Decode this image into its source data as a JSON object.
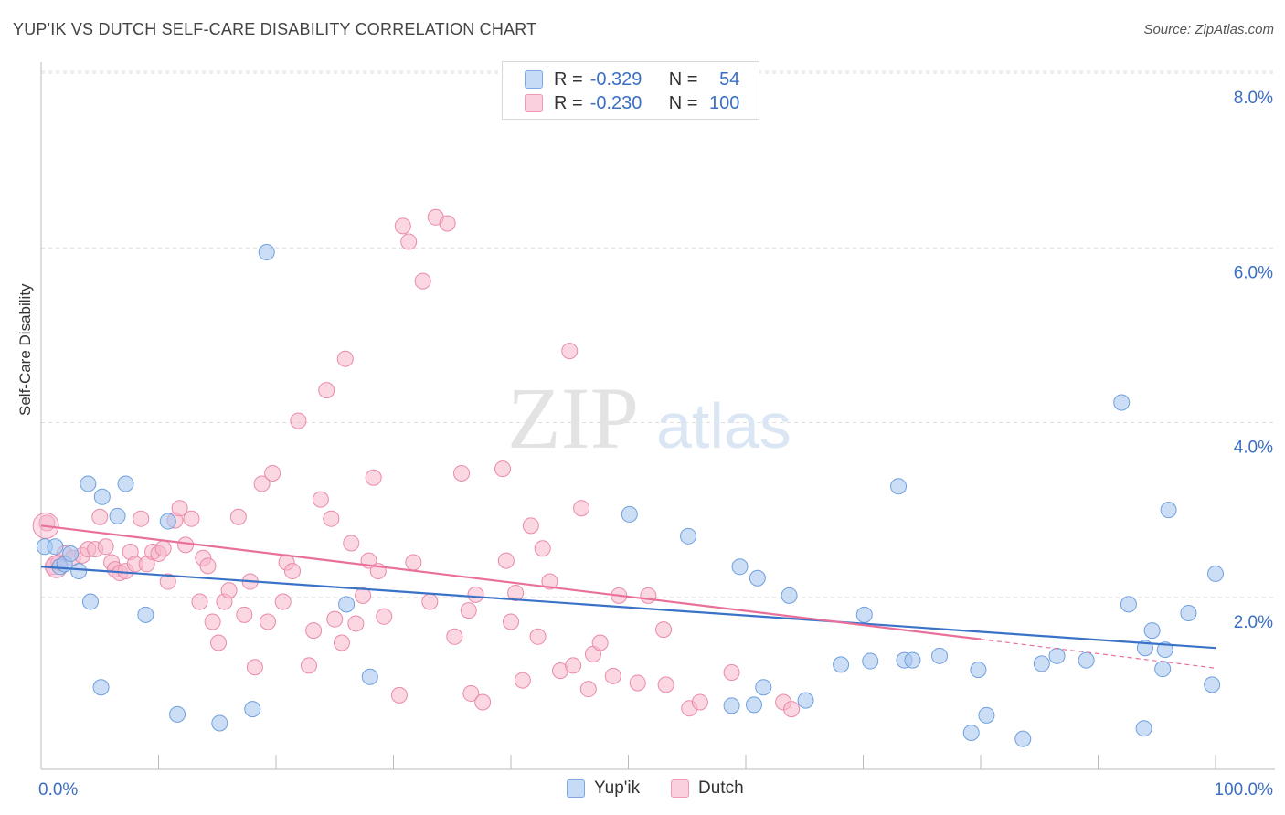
{
  "header": {
    "title": "YUP'IK VS DUTCH SELF-CARE DISABILITY CORRELATION CHART",
    "source": "Source: ZipAtlas.com"
  },
  "watermark": {
    "zip": "ZIP",
    "atlas": "atlas"
  },
  "legend": {
    "rows": [
      {
        "r_label": "R =",
        "r_value": "-0.329",
        "n_label": "N =",
        "n_value": "54",
        "color": "#a9c8f0"
      },
      {
        "r_label": "R =",
        "r_value": "-0.230",
        "n_label": "N =",
        "n_value": "100",
        "color": "#f7b6cb"
      }
    ]
  },
  "bottom_legend": {
    "yupik": "Yup'ik",
    "dutch": "Dutch"
  },
  "chart_data": {
    "type": "scatter",
    "title": "YUP'IK VS DUTCH SELF-CARE DISABILITY CORRELATION CHART",
    "xlabel": "",
    "ylabel": "Self-Care Disability",
    "xlim": [
      0,
      100
    ],
    "ylim": [
      0,
      8.2
    ],
    "x_tick_labels": [
      "0.0%",
      "100.0%"
    ],
    "y_ticks": [
      2,
      4,
      6,
      8
    ],
    "y_tick_labels": [
      "2.0%",
      "4.0%",
      "6.0%",
      "8.0%"
    ],
    "grid": "horizontal dashed",
    "legend_placement": "top-center",
    "series": [
      {
        "name": "Yup'ik",
        "color": "#a9c8f0",
        "edge_color": "#6f9fde",
        "trend": {
          "x": [
            0,
            100
          ],
          "y": [
            2.35,
            1.42
          ],
          "color": "#3a72c8"
        },
        "points": [
          [
            0.3,
            2.58
          ],
          [
            1.2,
            2.58
          ],
          [
            1.6,
            2.35
          ],
          [
            2.0,
            2.38
          ],
          [
            2.5,
            2.5
          ],
          [
            3.2,
            2.3
          ],
          [
            4.0,
            3.3
          ],
          [
            4.2,
            1.95
          ],
          [
            5.1,
            0.97
          ],
          [
            5.2,
            3.15
          ],
          [
            6.5,
            2.93
          ],
          [
            7.2,
            3.3
          ],
          [
            8.9,
            1.8
          ],
          [
            10.8,
            2.87
          ],
          [
            11.6,
            0.66
          ],
          [
            15.2,
            0.56
          ],
          [
            18.0,
            0.72
          ],
          [
            19.2,
            5.95
          ],
          [
            26.0,
            1.92
          ],
          [
            28.0,
            1.09
          ],
          [
            50.1,
            2.95
          ],
          [
            55.1,
            2.7
          ],
          [
            58.8,
            0.76
          ],
          [
            59.5,
            2.35
          ],
          [
            60.7,
            0.77
          ],
          [
            61.0,
            2.22
          ],
          [
            61.5,
            0.97
          ],
          [
            63.7,
            2.02
          ],
          [
            65.1,
            0.82
          ],
          [
            68.1,
            1.23
          ],
          [
            70.1,
            1.8
          ],
          [
            70.6,
            1.27
          ],
          [
            73.0,
            3.27
          ],
          [
            73.5,
            1.28
          ],
          [
            74.2,
            1.28
          ],
          [
            76.5,
            1.33
          ],
          [
            79.2,
            0.45
          ],
          [
            79.8,
            1.17
          ],
          [
            80.5,
            0.65
          ],
          [
            83.6,
            0.38
          ],
          [
            85.2,
            1.24
          ],
          [
            86.5,
            1.33
          ],
          [
            89.0,
            1.28
          ],
          [
            92.0,
            4.23
          ],
          [
            92.6,
            1.92
          ],
          [
            93.9,
            0.5
          ],
          [
            94.0,
            1.42
          ],
          [
            94.6,
            1.62
          ],
          [
            95.5,
            1.18
          ],
          [
            95.7,
            1.4
          ],
          [
            96.0,
            3.0
          ],
          [
            97.7,
            1.82
          ],
          [
            99.7,
            1.0
          ],
          [
            100.0,
            2.27
          ]
        ]
      },
      {
        "name": "Dutch",
        "color": "#f7b6cb",
        "edge_color": "#e98aa9",
        "trend": {
          "x": [
            0,
            80
          ],
          "y": [
            2.82,
            1.52
          ],
          "dashed_to": {
            "x": 100,
            "y": 1.19
          },
          "color": "#e8709b"
        },
        "points": [
          [
            0.5,
            2.85
          ],
          [
            1.0,
            2.35
          ],
          [
            1.5,
            2.4
          ],
          [
            2.0,
            2.5
          ],
          [
            2.7,
            2.45
          ],
          [
            3.5,
            2.48
          ],
          [
            4.0,
            2.55
          ],
          [
            4.6,
            2.55
          ],
          [
            5.0,
            2.92
          ],
          [
            5.5,
            2.58
          ],
          [
            6.0,
            2.4
          ],
          [
            6.3,
            2.32
          ],
          [
            6.7,
            2.28
          ],
          [
            7.2,
            2.3
          ],
          [
            7.6,
            2.52
          ],
          [
            8.0,
            2.38
          ],
          [
            8.5,
            2.9
          ],
          [
            9.0,
            2.38
          ],
          [
            9.5,
            2.52
          ],
          [
            10.0,
            2.5
          ],
          [
            10.4,
            2.56
          ],
          [
            10.8,
            2.18
          ],
          [
            11.4,
            2.88
          ],
          [
            11.8,
            3.02
          ],
          [
            12.3,
            2.6
          ],
          [
            12.8,
            2.9
          ],
          [
            13.5,
            1.95
          ],
          [
            13.8,
            2.45
          ],
          [
            14.2,
            2.36
          ],
          [
            14.6,
            1.72
          ],
          [
            15.1,
            1.48
          ],
          [
            15.6,
            1.95
          ],
          [
            16.0,
            2.08
          ],
          [
            16.8,
            2.92
          ],
          [
            17.3,
            1.8
          ],
          [
            17.8,
            2.18
          ],
          [
            18.2,
            1.2
          ],
          [
            18.8,
            3.3
          ],
          [
            19.3,
            1.72
          ],
          [
            19.7,
            3.42
          ],
          [
            20.6,
            1.95
          ],
          [
            20.9,
            2.4
          ],
          [
            21.4,
            2.3
          ],
          [
            21.9,
            4.02
          ],
          [
            22.8,
            1.22
          ],
          [
            23.2,
            1.62
          ],
          [
            23.8,
            3.12
          ],
          [
            24.3,
            4.37
          ],
          [
            24.7,
            2.9
          ],
          [
            25.0,
            1.75
          ],
          [
            25.6,
            1.48
          ],
          [
            25.9,
            4.73
          ],
          [
            26.4,
            2.62
          ],
          [
            26.8,
            1.7
          ],
          [
            27.4,
            2.02
          ],
          [
            27.9,
            2.42
          ],
          [
            28.3,
            3.37
          ],
          [
            28.7,
            2.3
          ],
          [
            29.2,
            1.78
          ],
          [
            30.5,
            0.88
          ],
          [
            30.8,
            6.25
          ],
          [
            31.3,
            6.07
          ],
          [
            31.7,
            2.4
          ],
          [
            32.5,
            5.62
          ],
          [
            33.1,
            1.95
          ],
          [
            33.6,
            6.35
          ],
          [
            34.6,
            6.28
          ],
          [
            35.2,
            1.55
          ],
          [
            35.8,
            3.42
          ],
          [
            36.4,
            1.85
          ],
          [
            36.6,
            0.9
          ],
          [
            37.0,
            2.03
          ],
          [
            37.6,
            0.8
          ],
          [
            39.3,
            3.47
          ],
          [
            39.6,
            2.42
          ],
          [
            40.0,
            1.72
          ],
          [
            40.4,
            2.05
          ],
          [
            41.0,
            1.05
          ],
          [
            41.7,
            2.82
          ],
          [
            42.3,
            1.55
          ],
          [
            42.7,
            2.56
          ],
          [
            43.3,
            2.18
          ],
          [
            44.2,
            1.16
          ],
          [
            45.0,
            4.82
          ],
          [
            45.3,
            1.22
          ],
          [
            46.0,
            3.02
          ],
          [
            46.6,
            0.95
          ],
          [
            47.0,
            1.35
          ],
          [
            47.6,
            1.48
          ],
          [
            48.7,
            1.1
          ],
          [
            49.2,
            2.02
          ],
          [
            50.8,
            1.02
          ],
          [
            51.7,
            2.02
          ],
          [
            53.0,
            1.63
          ],
          [
            53.2,
            1.0
          ],
          [
            55.2,
            0.73
          ],
          [
            56.1,
            0.8
          ],
          [
            58.8,
            1.14
          ],
          [
            63.2,
            0.8
          ],
          [
            63.9,
            0.72
          ]
        ]
      }
    ]
  }
}
